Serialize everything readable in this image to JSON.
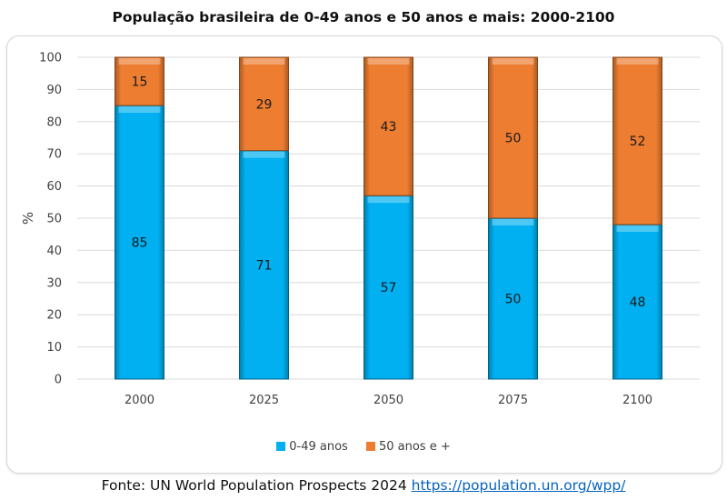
{
  "chart_data": {
    "type": "bar",
    "stacked": true,
    "title": "População brasileira de 0-49 anos e 50 anos e mais: 2000-2100",
    "ylabel": "%",
    "xlabel": "",
    "ylim": [
      0,
      100
    ],
    "yticks": [
      0,
      10,
      20,
      30,
      40,
      50,
      60,
      70,
      80,
      90,
      100
    ],
    "categories": [
      "2000",
      "2025",
      "2050",
      "2075",
      "2100"
    ],
    "series": [
      {
        "name": "0-49 anos",
        "color": "#00b0f0",
        "values": [
          85,
          71,
          57,
          50,
          48
        ]
      },
      {
        "name": "50 anos e +",
        "color": "#ed7d31",
        "values": [
          15,
          29,
          43,
          50,
          52
        ]
      }
    ],
    "legend_position": "bottom",
    "grid": true
  },
  "source": {
    "prefix": "Fonte: UN World Population Prospects 2024",
    "link": "https://population.un.org/wpp/"
  }
}
